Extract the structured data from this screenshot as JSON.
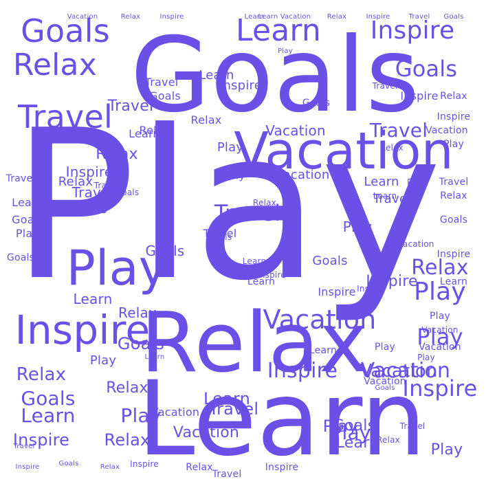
{
  "cloud": {
    "color": "#6a50e6",
    "words": [
      {
        "text": "Play",
        "size": 300
      },
      {
        "text": "Goals",
        "size": 150
      },
      {
        "text": "Learn",
        "size": 150
      },
      {
        "text": "Relax",
        "size": 120
      },
      {
        "text": "Vacation",
        "size": 74
      },
      {
        "text": "Play",
        "size": 70
      },
      {
        "text": "Inspire",
        "size": 58
      },
      {
        "text": "Travel",
        "size": 46
      },
      {
        "text": "Goals",
        "size": 46
      },
      {
        "text": "Relax",
        "size": 44
      },
      {
        "text": "Learn",
        "size": 44
      },
      {
        "text": "Vacation",
        "size": 38
      },
      {
        "text": "Inspire",
        "size": 36
      },
      {
        "text": "Play",
        "size": 36
      },
      {
        "text": "Goals",
        "size": 32
      },
      {
        "text": "Travel",
        "size": 32
      },
      {
        "text": "Inspire",
        "size": 32
      },
      {
        "text": "Play",
        "size": 32
      },
      {
        "text": "Vacation",
        "size": 30
      },
      {
        "text": "Relax",
        "size": 30
      },
      {
        "text": "Inspire",
        "size": 30
      },
      {
        "text": "Learn",
        "size": 28
      },
      {
        "text": "Goals",
        "size": 28
      },
      {
        "text": "Travel",
        "size": 28
      },
      {
        "text": "Play",
        "size": 28
      },
      {
        "text": "Play",
        "size": 28
      },
      {
        "text": "Relax",
        "size": 26
      },
      {
        "text": "Vacation",
        "size": 26
      },
      {
        "text": "Goals",
        "size": 24
      },
      {
        "text": "Learn",
        "size": 24
      },
      {
        "text": "Inspire",
        "size": 24
      },
      {
        "text": "Travel",
        "size": 24
      },
      {
        "text": "Relax",
        "size": 24
      },
      {
        "text": "Play",
        "size": 24
      },
      {
        "text": "Relax",
        "size": 22
      },
      {
        "text": "Goals",
        "size": 22
      },
      {
        "text": "Vacation",
        "size": 22
      },
      {
        "text": "Learn",
        "size": 22
      },
      {
        "text": "Relax",
        "size": 22
      },
      {
        "text": "Travel",
        "size": 22
      },
      {
        "text": "Inspire",
        "size": 22
      },
      {
        "text": "Play",
        "size": 22
      },
      {
        "text": "Goals",
        "size": 20
      },
      {
        "text": "Learn",
        "size": 20
      },
      {
        "text": "Relax",
        "size": 20
      },
      {
        "text": "Vacation",
        "size": 20
      },
      {
        "text": "Play",
        "size": 20
      },
      {
        "text": "Inspire",
        "size": 20
      },
      {
        "text": "Travel",
        "size": 20
      },
      {
        "text": "Goals",
        "size": 18
      },
      {
        "text": "Learn",
        "size": 18
      },
      {
        "text": "Play",
        "size": 18
      },
      {
        "text": "Relax",
        "size": 18
      },
      {
        "text": "Inspire",
        "size": 18
      },
      {
        "text": "Travel",
        "size": 18
      },
      {
        "text": "Vacation",
        "size": 18
      },
      {
        "text": "Goals",
        "size": 18
      },
      {
        "text": "Learn",
        "size": 18
      },
      {
        "text": "Play",
        "size": 18
      },
      {
        "text": "Relax",
        "size": 16
      },
      {
        "text": "Inspire",
        "size": 16
      },
      {
        "text": "Travel",
        "size": 16
      },
      {
        "text": "Goals",
        "size": 16
      },
      {
        "text": "Learn",
        "size": 16
      },
      {
        "text": "Play",
        "size": 16
      },
      {
        "text": "Vacation",
        "size": 16
      },
      {
        "text": "Relax",
        "size": 16
      },
      {
        "text": "Inspire",
        "size": 16
      },
      {
        "text": "Travel",
        "size": 16
      },
      {
        "text": "Goals",
        "size": 16
      },
      {
        "text": "Learn",
        "size": 16
      },
      {
        "text": "Play",
        "size": 16
      },
      {
        "text": "Relax",
        "size": 14
      },
      {
        "text": "Inspire",
        "size": 14
      },
      {
        "text": "Travel",
        "size": 14
      },
      {
        "text": "Goals",
        "size": 14
      },
      {
        "text": "Learn",
        "size": 14
      },
      {
        "text": "Play",
        "size": 14
      },
      {
        "text": "Vacation",
        "size": 14
      },
      {
        "text": "Relax",
        "size": 14
      },
      {
        "text": "Inspire",
        "size": 14
      },
      {
        "text": "Travel",
        "size": 14
      },
      {
        "text": "Goals",
        "size": 14
      },
      {
        "text": "Learn",
        "size": 14
      },
      {
        "text": "Play",
        "size": 14
      },
      {
        "text": "Vacation",
        "size": 14
      },
      {
        "text": "Relax",
        "size": 14
      },
      {
        "text": "Inspire",
        "size": 14
      },
      {
        "text": "Travel",
        "size": 14
      },
      {
        "text": "Goals",
        "size": 14
      },
      {
        "text": "Learn",
        "size": 14
      },
      {
        "text": "Play",
        "size": 14
      },
      {
        "text": "Vacation",
        "size": 14
      },
      {
        "text": "Relax",
        "size": 12
      },
      {
        "text": "Inspire",
        "size": 12
      },
      {
        "text": "Travel",
        "size": 12
      },
      {
        "text": "Goals",
        "size": 12
      },
      {
        "text": "Learn",
        "size": 12
      },
      {
        "text": "Play",
        "size": 12
      },
      {
        "text": "Vacation",
        "size": 12
      },
      {
        "text": "Relax",
        "size": 12
      },
      {
        "text": "Inspire",
        "size": 12
      },
      {
        "text": "Travel",
        "size": 12
      },
      {
        "text": "Goals",
        "size": 12
      },
      {
        "text": "Learn",
        "size": 12
      },
      {
        "text": "Play",
        "size": 12
      },
      {
        "text": "Vacation",
        "size": 12
      },
      {
        "text": "Relax",
        "size": 12
      },
      {
        "text": "Inspire",
        "size": 12
      },
      {
        "text": "Travel",
        "size": 12
      },
      {
        "text": "Goals",
        "size": 10
      },
      {
        "text": "Learn",
        "size": 10
      },
      {
        "text": "Play",
        "size": 10
      },
      {
        "text": "Vacation",
        "size": 10
      },
      {
        "text": "Relax",
        "size": 10
      },
      {
        "text": "Inspire",
        "size": 10
      },
      {
        "text": "Travel",
        "size": 10
      },
      {
        "text": "Goals",
        "size": 10
      },
      {
        "text": "Learn",
        "size": 10
      },
      {
        "text": "Relax",
        "size": 10
      },
      {
        "text": "Inspire",
        "size": 10
      },
      {
        "text": "Vacation",
        "size": 10
      },
      {
        "text": "Learn",
        "size": 10
      },
      {
        "text": "Travel",
        "size": 10
      },
      {
        "text": "Goals",
        "size": 10
      },
      {
        "text": "Relax",
        "size": 10
      },
      {
        "text": "Inspire",
        "size": 10
      }
    ]
  }
}
